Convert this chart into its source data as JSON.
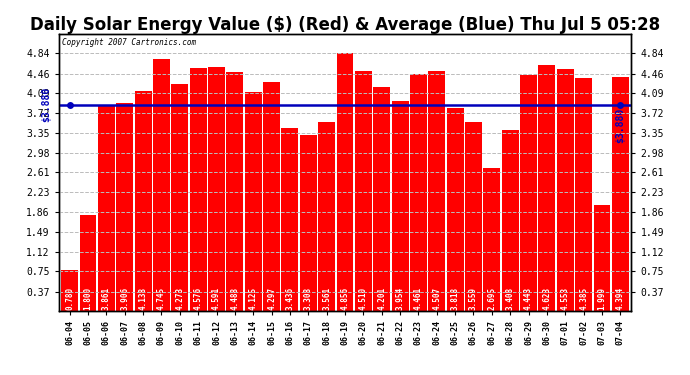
{
  "title": "Daily Solar Energy Value ($) (Red) & Average (Blue) Thu Jul 5 05:28",
  "copyright": "Copyright 2007 Cartronics.com",
  "categories": [
    "06-04",
    "06-05",
    "06-06",
    "06-07",
    "06-08",
    "06-09",
    "06-10",
    "06-11",
    "06-12",
    "06-13",
    "06-14",
    "06-15",
    "06-16",
    "06-17",
    "06-18",
    "06-19",
    "06-20",
    "06-21",
    "06-22",
    "06-23",
    "06-24",
    "06-25",
    "06-26",
    "06-27",
    "06-28",
    "06-29",
    "06-30",
    "07-01",
    "07-02",
    "07-03",
    "07-04"
  ],
  "values": [
    0.78,
    1.8,
    3.861,
    3.906,
    4.138,
    4.745,
    4.273,
    4.576,
    4.591,
    4.488,
    4.125,
    4.297,
    3.436,
    3.308,
    3.561,
    4.856,
    4.51,
    4.201,
    3.954,
    4.461,
    4.507,
    3.818,
    3.559,
    2.695,
    3.408,
    4.443,
    4.623,
    4.553,
    4.385,
    1.999,
    4.394
  ],
  "average": 3.88,
  "bar_color": "#ff0000",
  "avg_line_color": "#0000bb",
  "background_color": "#ffffff",
  "plot_bg_color": "#ffffff",
  "grid_color": "#bbbbbb",
  "title_fontsize": 12,
  "tick_label_fontsize": 6,
  "bar_label_fontsize": 5.5,
  "ylim_max": 5.21,
  "yticks": [
    0.37,
    0.75,
    1.12,
    1.49,
    1.86,
    2.23,
    2.61,
    2.98,
    3.35,
    3.72,
    4.09,
    4.46,
    4.84
  ]
}
